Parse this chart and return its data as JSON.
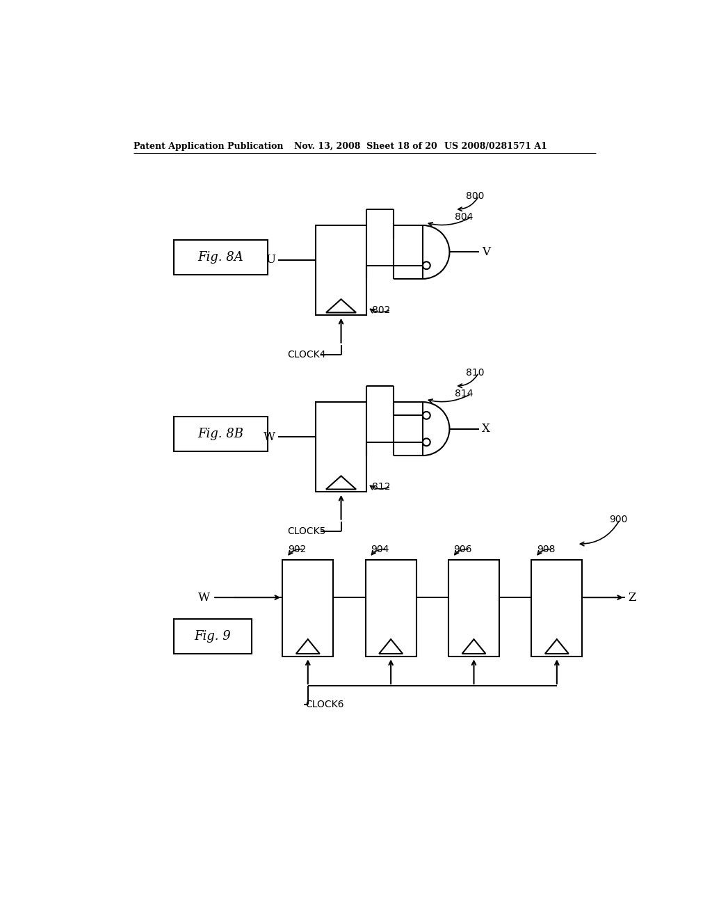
{
  "bg_color": "#ffffff",
  "header_text1": "Patent Application Publication",
  "header_text2": "Nov. 13, 2008  Sheet 18 of 20",
  "header_text3": "US 2008/0281571 A1",
  "fig8a_label": "Fig. 8A",
  "fig8b_label": "Fig. 8B",
  "fig9_label": "Fig. 9",
  "fig8a_num": "800",
  "fig8a_ff_num": "802",
  "fig8a_gate_num": "804",
  "fig8a_input": "U",
  "fig8a_output": "V",
  "fig8a_clock": "CLOCK4",
  "fig8b_num": "810",
  "fig8b_ff_num": "812",
  "fig8b_gate_num": "814",
  "fig8b_input": "W",
  "fig8b_output": "X",
  "fig8b_clock": "CLOCK5",
  "fig9_num": "900",
  "fig9_ff1": "902",
  "fig9_ff2": "904",
  "fig9_ff3": "906",
  "fig9_ff4": "908",
  "fig9_input": "W",
  "fig9_output": "Z",
  "fig9_clock": "CLOCK6",
  "lw": 1.5
}
